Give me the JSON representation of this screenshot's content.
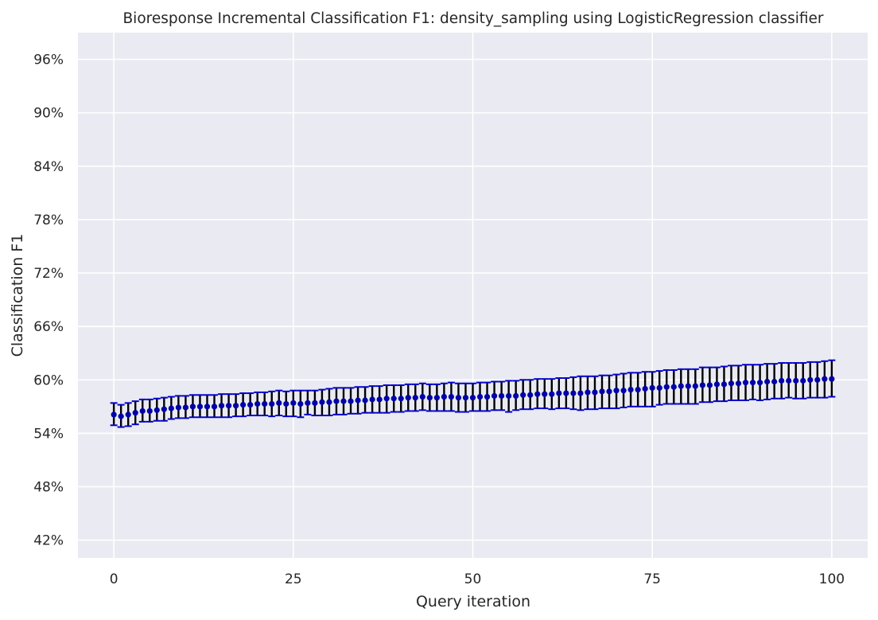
{
  "chart_data": {
    "type": "scatter",
    "title": "Bioresponse Incremental Classification F1: density_sampling using LogisticRegression classifier",
    "xlabel": "Query iteration",
    "ylabel": "Classification F1",
    "xlim": [
      -5,
      105
    ],
    "ylim": [
      0.4,
      0.99
    ],
    "x_ticks": [
      0,
      25,
      50,
      75,
      100
    ],
    "x_tick_labels": [
      "0",
      "25",
      "50",
      "75",
      "100"
    ],
    "y_ticks": [
      0.42,
      0.48,
      0.54,
      0.6,
      0.66,
      0.72,
      0.78,
      0.84,
      0.9,
      0.96
    ],
    "y_tick_labels": [
      "42%",
      "48%",
      "54%",
      "60%",
      "66%",
      "72%",
      "78%",
      "84%",
      "90%",
      "96%"
    ],
    "grid": true,
    "style": {
      "background": "#eaeaf2",
      "grid_color": "#ffffff",
      "marker_color": "#0000aa",
      "errorbar_color": "#000000",
      "cap_color": "#0000cc"
    },
    "series": [
      {
        "x": [
          0,
          1,
          2,
          3,
          4,
          5,
          6,
          7,
          8,
          9,
          10,
          11,
          12,
          13,
          14,
          15,
          16,
          17,
          18,
          19,
          20,
          21,
          22,
          23,
          24,
          25,
          26,
          27,
          28,
          29,
          30,
          31,
          32,
          33,
          34,
          35,
          36,
          37,
          38,
          39,
          40,
          41,
          42,
          43,
          44,
          45,
          46,
          47,
          48,
          49,
          50,
          51,
          52,
          53,
          54,
          55,
          56,
          57,
          58,
          59,
          60,
          61,
          62,
          63,
          64,
          65,
          66,
          67,
          68,
          69,
          70,
          71,
          72,
          73,
          74,
          75,
          76,
          77,
          78,
          79,
          80,
          81,
          82,
          83,
          84,
          85,
          86,
          87,
          88,
          89,
          90,
          91,
          92,
          93,
          94,
          95,
          96,
          97,
          98,
          99,
          100
        ],
        "y": [
          0.561,
          0.559,
          0.561,
          0.563,
          0.565,
          0.565,
          0.566,
          0.567,
          0.568,
          0.569,
          0.569,
          0.57,
          0.57,
          0.57,
          0.57,
          0.571,
          0.571,
          0.571,
          0.572,
          0.572,
          0.573,
          0.573,
          0.573,
          0.574,
          0.573,
          0.574,
          0.573,
          0.574,
          0.574,
          0.575,
          0.575,
          0.576,
          0.576,
          0.576,
          0.577,
          0.577,
          0.578,
          0.578,
          0.579,
          0.579,
          0.579,
          0.58,
          0.58,
          0.581,
          0.58,
          0.58,
          0.581,
          0.581,
          0.58,
          0.58,
          0.58,
          0.581,
          0.581,
          0.582,
          0.582,
          0.582,
          0.582,
          0.583,
          0.583,
          0.584,
          0.584,
          0.584,
          0.585,
          0.585,
          0.585,
          0.585,
          0.586,
          0.586,
          0.587,
          0.587,
          0.588,
          0.588,
          0.589,
          0.589,
          0.59,
          0.591,
          0.591,
          0.592,
          0.592,
          0.593,
          0.593,
          0.593,
          0.594,
          0.594,
          0.595,
          0.595,
          0.596,
          0.596,
          0.597,
          0.597,
          0.597,
          0.598,
          0.598,
          0.599,
          0.599,
          0.599,
          0.599,
          0.6,
          0.6,
          0.601,
          0.601
        ],
        "err_low": [
          0.549,
          0.547,
          0.548,
          0.55,
          0.553,
          0.553,
          0.554,
          0.554,
          0.556,
          0.557,
          0.557,
          0.558,
          0.558,
          0.558,
          0.558,
          0.558,
          0.558,
          0.559,
          0.559,
          0.56,
          0.56,
          0.56,
          0.559,
          0.56,
          0.559,
          0.559,
          0.558,
          0.561,
          0.56,
          0.56,
          0.56,
          0.561,
          0.561,
          0.562,
          0.562,
          0.563,
          0.563,
          0.563,
          0.563,
          0.564,
          0.564,
          0.565,
          0.565,
          0.566,
          0.565,
          0.565,
          0.565,
          0.565,
          0.564,
          0.564,
          0.565,
          0.565,
          0.565,
          0.566,
          0.566,
          0.564,
          0.566,
          0.567,
          0.567,
          0.568,
          0.568,
          0.567,
          0.568,
          0.568,
          0.567,
          0.566,
          0.567,
          0.567,
          0.568,
          0.568,
          0.568,
          0.569,
          0.57,
          0.57,
          0.57,
          0.57,
          0.572,
          0.573,
          0.573,
          0.573,
          0.573,
          0.573,
          0.575,
          0.575,
          0.576,
          0.576,
          0.577,
          0.577,
          0.577,
          0.578,
          0.577,
          0.578,
          0.579,
          0.579,
          0.58,
          0.579,
          0.579,
          0.58,
          0.58,
          0.58,
          0.581
        ],
        "err_high": [
          0.574,
          0.572,
          0.574,
          0.576,
          0.578,
          0.578,
          0.579,
          0.58,
          0.581,
          0.582,
          0.582,
          0.583,
          0.583,
          0.583,
          0.583,
          0.584,
          0.584,
          0.584,
          0.585,
          0.585,
          0.586,
          0.586,
          0.587,
          0.588,
          0.587,
          0.588,
          0.588,
          0.588,
          0.588,
          0.589,
          0.59,
          0.591,
          0.591,
          0.591,
          0.592,
          0.592,
          0.593,
          0.593,
          0.594,
          0.594,
          0.594,
          0.595,
          0.595,
          0.596,
          0.595,
          0.595,
          0.596,
          0.597,
          0.596,
          0.596,
          0.596,
          0.597,
          0.597,
          0.598,
          0.598,
          0.599,
          0.599,
          0.6,
          0.6,
          0.601,
          0.601,
          0.601,
          0.602,
          0.602,
          0.603,
          0.604,
          0.604,
          0.604,
          0.605,
          0.605,
          0.606,
          0.607,
          0.608,
          0.608,
          0.609,
          0.609,
          0.61,
          0.611,
          0.611,
          0.612,
          0.612,
          0.612,
          0.614,
          0.614,
          0.614,
          0.615,
          0.616,
          0.616,
          0.617,
          0.617,
          0.617,
          0.618,
          0.618,
          0.619,
          0.619,
          0.619,
          0.619,
          0.62,
          0.62,
          0.621,
          0.622
        ]
      }
    ]
  }
}
